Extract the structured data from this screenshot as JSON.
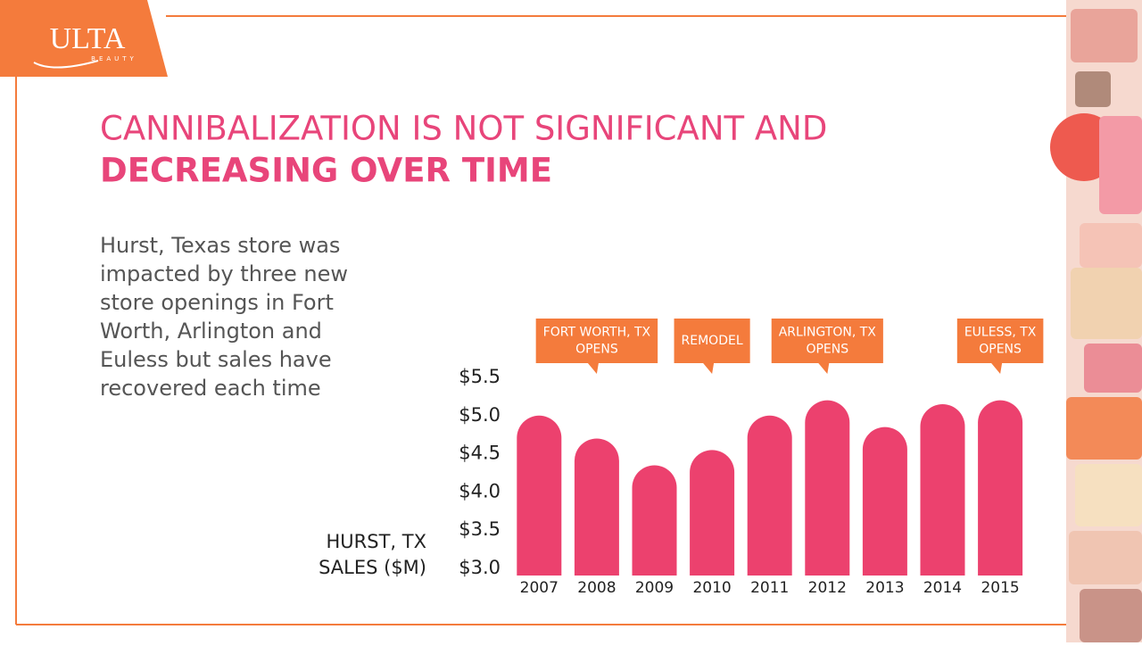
{
  "logo": {
    "brand": "ULTA",
    "sub": "BEAUTY"
  },
  "chart_data": {
    "type": "bar",
    "title": [
      "CANNIBALIZATION IS NOT SIGNIFICANT AND",
      "DECREASING OVER TIME"
    ],
    "description": [
      "Hurst, Texas store was",
      "impacted by three new",
      "store openings in Fort",
      "Worth, Arlington and",
      "Euless but sales have",
      "recovered each time"
    ],
    "y_label": [
      "HURST, TX",
      "SALES ($M)"
    ],
    "categories": [
      "2007",
      "2008",
      "2009",
      "2010",
      "2011",
      "2012",
      "2013",
      "2014",
      "2015"
    ],
    "values": [
      5.0,
      4.7,
      4.35,
      4.55,
      5.0,
      5.2,
      4.85,
      5.15,
      5.2
    ],
    "color": "#ec416e",
    "ylim": [
      3.0,
      5.5
    ],
    "yticks": [
      {
        "value": 3.0,
        "label": "$3.0"
      },
      {
        "value": 3.5,
        "label": "$3.5"
      },
      {
        "value": 4.0,
        "label": "$4.0"
      },
      {
        "value": 4.5,
        "label": "$4.5"
      },
      {
        "value": 5.0,
        "label": "$5.0"
      },
      {
        "value": 5.5,
        "label": "$5.5"
      }
    ],
    "annotations": [
      {
        "category": "2008",
        "lines": [
          "FORT WORTH, TX",
          "OPENS"
        ]
      },
      {
        "category": "2010",
        "lines": [
          "REMODEL"
        ]
      },
      {
        "category": "2012",
        "lines": [
          "ARLINGTON, TX",
          "OPENS"
        ]
      },
      {
        "category": "2015",
        "lines": [
          "EULESS, TX",
          "OPENS"
        ]
      }
    ],
    "annotation_color": "#f47b3c"
  }
}
